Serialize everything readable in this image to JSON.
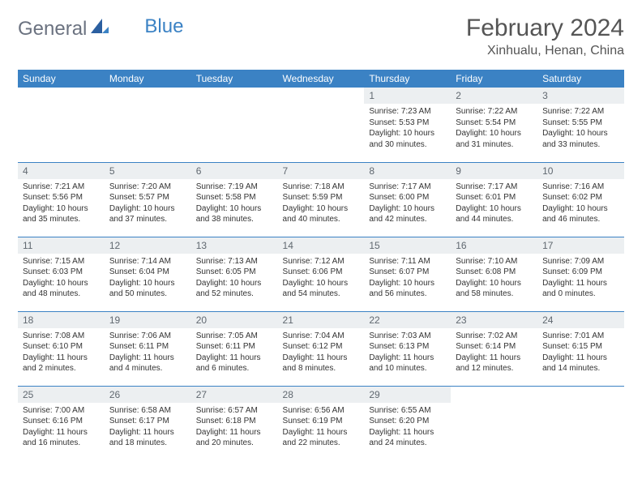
{
  "brand": {
    "part1": "General",
    "part2": "Blue"
  },
  "title": "February 2024",
  "location": "Xinhualu, Henan, China",
  "colors": {
    "header_bg": "#3b82c4",
    "header_text": "#ffffff",
    "daynum_bg": "#eceff1",
    "border": "#3b82c4",
    "body_text": "#333333"
  },
  "weekdays": [
    "Sunday",
    "Monday",
    "Tuesday",
    "Wednesday",
    "Thursday",
    "Friday",
    "Saturday"
  ],
  "weeks": [
    [
      null,
      null,
      null,
      null,
      {
        "n": "1",
        "sr": "Sunrise: 7:23 AM",
        "ss": "Sunset: 5:53 PM",
        "dl1": "Daylight: 10 hours",
        "dl2": "and 30 minutes."
      },
      {
        "n": "2",
        "sr": "Sunrise: 7:22 AM",
        "ss": "Sunset: 5:54 PM",
        "dl1": "Daylight: 10 hours",
        "dl2": "and 31 minutes."
      },
      {
        "n": "3",
        "sr": "Sunrise: 7:22 AM",
        "ss": "Sunset: 5:55 PM",
        "dl1": "Daylight: 10 hours",
        "dl2": "and 33 minutes."
      }
    ],
    [
      {
        "n": "4",
        "sr": "Sunrise: 7:21 AM",
        "ss": "Sunset: 5:56 PM",
        "dl1": "Daylight: 10 hours",
        "dl2": "and 35 minutes."
      },
      {
        "n": "5",
        "sr": "Sunrise: 7:20 AM",
        "ss": "Sunset: 5:57 PM",
        "dl1": "Daylight: 10 hours",
        "dl2": "and 37 minutes."
      },
      {
        "n": "6",
        "sr": "Sunrise: 7:19 AM",
        "ss": "Sunset: 5:58 PM",
        "dl1": "Daylight: 10 hours",
        "dl2": "and 38 minutes."
      },
      {
        "n": "7",
        "sr": "Sunrise: 7:18 AM",
        "ss": "Sunset: 5:59 PM",
        "dl1": "Daylight: 10 hours",
        "dl2": "and 40 minutes."
      },
      {
        "n": "8",
        "sr": "Sunrise: 7:17 AM",
        "ss": "Sunset: 6:00 PM",
        "dl1": "Daylight: 10 hours",
        "dl2": "and 42 minutes."
      },
      {
        "n": "9",
        "sr": "Sunrise: 7:17 AM",
        "ss": "Sunset: 6:01 PM",
        "dl1": "Daylight: 10 hours",
        "dl2": "and 44 minutes."
      },
      {
        "n": "10",
        "sr": "Sunrise: 7:16 AM",
        "ss": "Sunset: 6:02 PM",
        "dl1": "Daylight: 10 hours",
        "dl2": "and 46 minutes."
      }
    ],
    [
      {
        "n": "11",
        "sr": "Sunrise: 7:15 AM",
        "ss": "Sunset: 6:03 PM",
        "dl1": "Daylight: 10 hours",
        "dl2": "and 48 minutes."
      },
      {
        "n": "12",
        "sr": "Sunrise: 7:14 AM",
        "ss": "Sunset: 6:04 PM",
        "dl1": "Daylight: 10 hours",
        "dl2": "and 50 minutes."
      },
      {
        "n": "13",
        "sr": "Sunrise: 7:13 AM",
        "ss": "Sunset: 6:05 PM",
        "dl1": "Daylight: 10 hours",
        "dl2": "and 52 minutes."
      },
      {
        "n": "14",
        "sr": "Sunrise: 7:12 AM",
        "ss": "Sunset: 6:06 PM",
        "dl1": "Daylight: 10 hours",
        "dl2": "and 54 minutes."
      },
      {
        "n": "15",
        "sr": "Sunrise: 7:11 AM",
        "ss": "Sunset: 6:07 PM",
        "dl1": "Daylight: 10 hours",
        "dl2": "and 56 minutes."
      },
      {
        "n": "16",
        "sr": "Sunrise: 7:10 AM",
        "ss": "Sunset: 6:08 PM",
        "dl1": "Daylight: 10 hours",
        "dl2": "and 58 minutes."
      },
      {
        "n": "17",
        "sr": "Sunrise: 7:09 AM",
        "ss": "Sunset: 6:09 PM",
        "dl1": "Daylight: 11 hours",
        "dl2": "and 0 minutes."
      }
    ],
    [
      {
        "n": "18",
        "sr": "Sunrise: 7:08 AM",
        "ss": "Sunset: 6:10 PM",
        "dl1": "Daylight: 11 hours",
        "dl2": "and 2 minutes."
      },
      {
        "n": "19",
        "sr": "Sunrise: 7:06 AM",
        "ss": "Sunset: 6:11 PM",
        "dl1": "Daylight: 11 hours",
        "dl2": "and 4 minutes."
      },
      {
        "n": "20",
        "sr": "Sunrise: 7:05 AM",
        "ss": "Sunset: 6:11 PM",
        "dl1": "Daylight: 11 hours",
        "dl2": "and 6 minutes."
      },
      {
        "n": "21",
        "sr": "Sunrise: 7:04 AM",
        "ss": "Sunset: 6:12 PM",
        "dl1": "Daylight: 11 hours",
        "dl2": "and 8 minutes."
      },
      {
        "n": "22",
        "sr": "Sunrise: 7:03 AM",
        "ss": "Sunset: 6:13 PM",
        "dl1": "Daylight: 11 hours",
        "dl2": "and 10 minutes."
      },
      {
        "n": "23",
        "sr": "Sunrise: 7:02 AM",
        "ss": "Sunset: 6:14 PM",
        "dl1": "Daylight: 11 hours",
        "dl2": "and 12 minutes."
      },
      {
        "n": "24",
        "sr": "Sunrise: 7:01 AM",
        "ss": "Sunset: 6:15 PM",
        "dl1": "Daylight: 11 hours",
        "dl2": "and 14 minutes."
      }
    ],
    [
      {
        "n": "25",
        "sr": "Sunrise: 7:00 AM",
        "ss": "Sunset: 6:16 PM",
        "dl1": "Daylight: 11 hours",
        "dl2": "and 16 minutes."
      },
      {
        "n": "26",
        "sr": "Sunrise: 6:58 AM",
        "ss": "Sunset: 6:17 PM",
        "dl1": "Daylight: 11 hours",
        "dl2": "and 18 minutes."
      },
      {
        "n": "27",
        "sr": "Sunrise: 6:57 AM",
        "ss": "Sunset: 6:18 PM",
        "dl1": "Daylight: 11 hours",
        "dl2": "and 20 minutes."
      },
      {
        "n": "28",
        "sr": "Sunrise: 6:56 AM",
        "ss": "Sunset: 6:19 PM",
        "dl1": "Daylight: 11 hours",
        "dl2": "and 22 minutes."
      },
      {
        "n": "29",
        "sr": "Sunrise: 6:55 AM",
        "ss": "Sunset: 6:20 PM",
        "dl1": "Daylight: 11 hours",
        "dl2": "and 24 minutes."
      },
      null,
      null
    ]
  ]
}
